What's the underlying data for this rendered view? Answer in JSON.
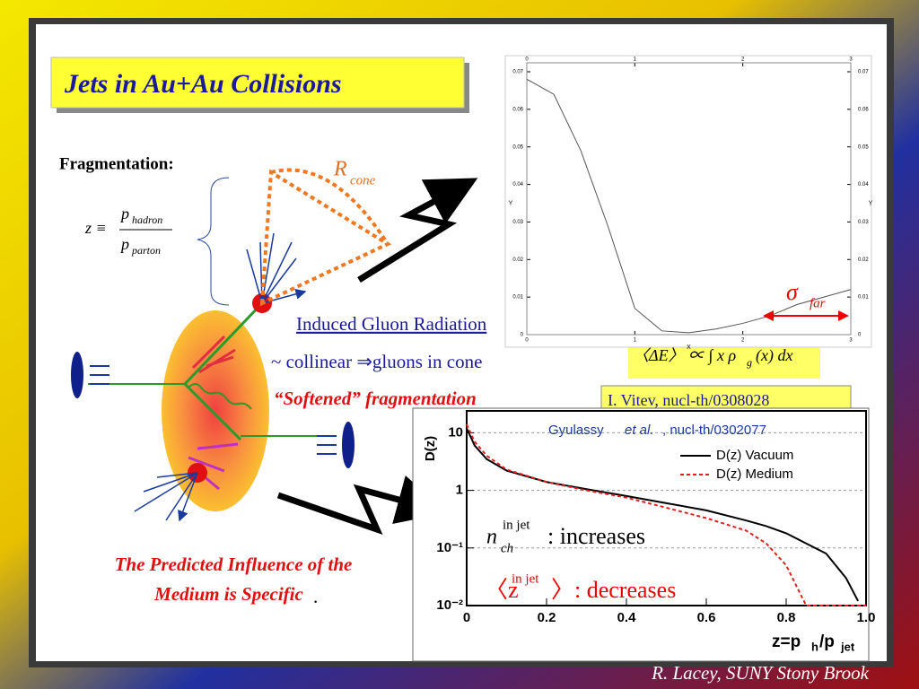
{
  "title": "Jets in Au+Au Collisions",
  "fragmentation": "Fragmentation:",
  "formula": {
    "lhs": "z ≡",
    "num": "p",
    "num_sub": "hadron",
    "den": "p",
    "den_sub": "parton"
  },
  "cone": {
    "symbol": "R",
    "sub": "cone"
  },
  "bullets": [
    "Induced Gluon Radiation",
    "~ collinear ⇒gluons in cone",
    "“Softened” fragmentation"
  ],
  "energy_formula": "〈ΔE〉 ∝ ∫ x ρ",
  "energy_formula_sub": "g",
  "energy_formula_tail": "(x) dx",
  "reference": "I. Vitev, nucl-th/0308028",
  "conclusion": [
    "The Predicted Influence of the",
    "Medium is Specific",
    "."
  ],
  "footer": "R. Lacey, SUNY  Stony Brook",
  "chart_data": [
    {
      "type": "line",
      "x_label": "X",
      "y_label": "Y",
      "x": [
        0,
        0.25,
        0.5,
        0.75,
        1,
        1.25,
        1.5,
        1.75,
        2,
        2.25,
        2.5,
        2.75,
        3
      ],
      "series": [
        {
          "name": "Y",
          "color": "#555555",
          "values": [
            0.068,
            0.064,
            0.049,
            0.029,
            0.007,
            0.001,
            0.0005,
            0.0015,
            0.003,
            0.005,
            0.008,
            0.01,
            0.012
          ]
        }
      ],
      "xlim": [
        0,
        3
      ],
      "ylim": [
        0,
        0.07
      ],
      "xticks": [
        0,
        1,
        2,
        3
      ],
      "yticks": [
        0,
        0.01,
        0.02,
        0.03,
        0.04,
        0.05,
        0.06,
        0.07
      ],
      "annotation": {
        "symbol": "σ",
        "sub": "far"
      }
    },
    {
      "type": "line",
      "subtitle": [
        "Gyulassy ",
        "et al.",
        ", nucl-th/0302077"
      ],
      "y_label": "D(z)",
      "x_label": [
        "z=p",
        "h",
        "/p",
        "jet"
      ],
      "log_y": true,
      "grid": true,
      "x": [
        0,
        0.02,
        0.05,
        0.1,
        0.2,
        0.3,
        0.4,
        0.5,
        0.6,
        0.7,
        0.75,
        0.8,
        0.85,
        0.9,
        0.95,
        0.98,
        1.0
      ],
      "series": [
        {
          "name": "D(z) Vacuum",
          "color": "#000000",
          "values": [
            12,
            6,
            3.5,
            2.2,
            1.4,
            1.05,
            0.8,
            0.6,
            0.45,
            0.3,
            0.24,
            0.18,
            0.12,
            0.08,
            0.03,
            0.012,
            null
          ]
        },
        {
          "name": "D(z) Medium",
          "color": "#e02020",
          "dashed": true,
          "values": [
            14,
            7,
            4,
            2.3,
            1.4,
            1.0,
            0.75,
            0.5,
            0.33,
            0.2,
            0.12,
            0.05,
            0.01,
            0.01,
            0.01,
            0.01,
            0.01
          ]
        }
      ],
      "xlim": [
        0,
        1.0
      ],
      "ylim": [
        0.01,
        24
      ],
      "xticks": [
        0,
        0.2,
        0.4,
        0.6,
        0.8,
        {
          "value": 1.0,
          "label": "1.0"
        }
      ],
      "yticks": [
        {
          "value": 0.01,
          "label": "10⁻²"
        },
        {
          "value": 0.1,
          "label": "10⁻¹"
        },
        1,
        10
      ],
      "annotations": [
        {
          "main": "n",
          "sub": "ch",
          "sup": "in jet",
          "tail": ":  increases"
        },
        {
          "main": "〈z",
          "sup": "in jet",
          "tail": "〉:  decreases"
        }
      ]
    }
  ]
}
